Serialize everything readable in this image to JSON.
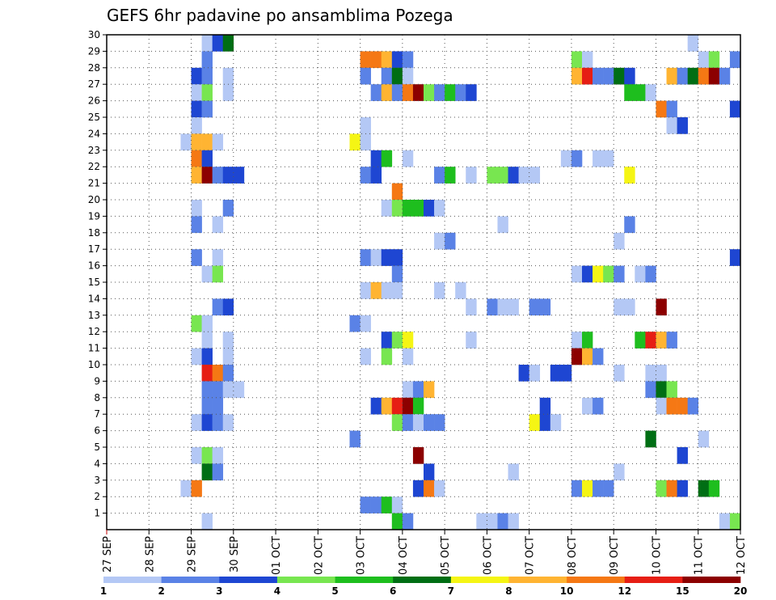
{
  "chart_data": {
    "type": "heatmap",
    "title": "GEFS 6hr padavine po ansamblima Pozega",
    "x_ticks": [
      "27 SEP",
      "28 SEP",
      "29 SEP",
      "30 SEP",
      "01 OCT",
      "02 OCT",
      "03 OCT",
      "04 OCT",
      "05 OCT",
      "06 OCT",
      "07 OCT",
      "08 OCT",
      "09 OCT",
      "10 OCT",
      "11 OCT",
      "12 OCT"
    ],
    "x_range": [
      "27 SEP 00Z",
      "12 OCT 00Z"
    ],
    "x_step_hours": 6,
    "y_ticks": [
      "1",
      "2",
      "3",
      "4",
      "5",
      "6",
      "7",
      "8",
      "9",
      "10",
      "11",
      "12",
      "13",
      "14",
      "15",
      "16",
      "17",
      "18",
      "19",
      "20",
      "21",
      "22",
      "23",
      "24",
      "25",
      "26",
      "27",
      "28",
      "29",
      "30"
    ],
    "y_range": [
      0,
      30
    ],
    "grid": true,
    "legend_position": "bottom",
    "legend": {
      "labels": [
        "1",
        "2",
        "3",
        "4",
        "5",
        "6",
        "7",
        "8",
        "10",
        "12",
        "15",
        "20"
      ],
      "colors": [
        "#b4c8f5",
        "#5a82e6",
        "#1e46d2",
        "#78e650",
        "#1ebe1e",
        "#006e14",
        "#f5f514",
        "#ffb432",
        "#f57814",
        "#e61e14",
        "#8c0000"
      ]
    },
    "cells_note": "each cell: [day_offset_from_27SEP, member, color_class 0-10]",
    "cells": [
      [
        2.25,
        30,
        0
      ],
      [
        2.5,
        30,
        2
      ],
      [
        2.75,
        30,
        5
      ],
      [
        13.75,
        30,
        0
      ],
      [
        2.25,
        29,
        1
      ],
      [
        6.0,
        29,
        8
      ],
      [
        6.25,
        29,
        8
      ],
      [
        6.5,
        29,
        7
      ],
      [
        6.75,
        29,
        2
      ],
      [
        7.0,
        29,
        1
      ],
      [
        11.0,
        29,
        3
      ],
      [
        11.25,
        29,
        0
      ],
      [
        14.0,
        29,
        0
      ],
      [
        14.25,
        29,
        3
      ],
      [
        14.75,
        29,
        1
      ],
      [
        2.0,
        28,
        2
      ],
      [
        2.25,
        28,
        1
      ],
      [
        2.75,
        28,
        0
      ],
      [
        6.0,
        28,
        1
      ],
      [
        6.5,
        28,
        1
      ],
      [
        6.75,
        28,
        5
      ],
      [
        7.0,
        28,
        0
      ],
      [
        11.0,
        28,
        7
      ],
      [
        11.25,
        28,
        9
      ],
      [
        11.5,
        28,
        1
      ],
      [
        11.75,
        28,
        1
      ],
      [
        12.0,
        28,
        5
      ],
      [
        12.25,
        28,
        2
      ],
      [
        13.25,
        28,
        7
      ],
      [
        13.5,
        28,
        1
      ],
      [
        13.75,
        28,
        5
      ],
      [
        14.0,
        28,
        8
      ],
      [
        14.25,
        28,
        10
      ],
      [
        14.5,
        28,
        1
      ],
      [
        2.0,
        27,
        0
      ],
      [
        2.25,
        27,
        3
      ],
      [
        2.75,
        27,
        0
      ],
      [
        6.25,
        27,
        1
      ],
      [
        6.5,
        27,
        7
      ],
      [
        6.75,
        27,
        1
      ],
      [
        7.0,
        27,
        8
      ],
      [
        7.25,
        27,
        10
      ],
      [
        7.5,
        27,
        3
      ],
      [
        7.75,
        27,
        1
      ],
      [
        8.0,
        27,
        4
      ],
      [
        8.25,
        27,
        1
      ],
      [
        8.5,
        27,
        2
      ],
      [
        12.25,
        27,
        4
      ],
      [
        12.5,
        27,
        4
      ],
      [
        12.75,
        27,
        0
      ],
      [
        2.0,
        26,
        2
      ],
      [
        2.25,
        26,
        1
      ],
      [
        13.0,
        26,
        8
      ],
      [
        13.25,
        26,
        1
      ],
      [
        14.75,
        26,
        2
      ],
      [
        2.0,
        25,
        0
      ],
      [
        6.0,
        25,
        0
      ],
      [
        13.25,
        25,
        0
      ],
      [
        13.5,
        25,
        2
      ],
      [
        1.75,
        24,
        0
      ],
      [
        2.0,
        24,
        7
      ],
      [
        2.25,
        24,
        7
      ],
      [
        2.5,
        24,
        0
      ],
      [
        5.75,
        24,
        6
      ],
      [
        6.0,
        24,
        0
      ],
      [
        2.0,
        23,
        8
      ],
      [
        2.25,
        23,
        2
      ],
      [
        6.25,
        23,
        2
      ],
      [
        6.5,
        23,
        4
      ],
      [
        7.0,
        23,
        0
      ],
      [
        10.75,
        23,
        0
      ],
      [
        11.0,
        23,
        1
      ],
      [
        11.5,
        23,
        0
      ],
      [
        11.75,
        23,
        0
      ],
      [
        2.0,
        22,
        7
      ],
      [
        2.25,
        22,
        10
      ],
      [
        2.5,
        22,
        1
      ],
      [
        2.75,
        22,
        2
      ],
      [
        3.0,
        22,
        2
      ],
      [
        6.0,
        22,
        1
      ],
      [
        6.25,
        22,
        2
      ],
      [
        7.75,
        22,
        1
      ],
      [
        8.0,
        22,
        4
      ],
      [
        8.5,
        22,
        0
      ],
      [
        9.0,
        22,
        3
      ],
      [
        9.25,
        22,
        3
      ],
      [
        9.5,
        22,
        2
      ],
      [
        9.75,
        22,
        0
      ],
      [
        10.0,
        22,
        0
      ],
      [
        12.25,
        22,
        6
      ],
      [
        6.75,
        21,
        8
      ],
      [
        2.0,
        20,
        0
      ],
      [
        2.75,
        20,
        1
      ],
      [
        6.5,
        20,
        0
      ],
      [
        6.75,
        20,
        3
      ],
      [
        7.0,
        20,
        4
      ],
      [
        7.25,
        20,
        4
      ],
      [
        7.5,
        20,
        2
      ],
      [
        7.75,
        20,
        0
      ],
      [
        2.0,
        19,
        1
      ],
      [
        2.5,
        19,
        0
      ],
      [
        9.25,
        19,
        0
      ],
      [
        12.25,
        19,
        1
      ],
      [
        7.75,
        18,
        0
      ],
      [
        8.0,
        18,
        1
      ],
      [
        12.0,
        18,
        0
      ],
      [
        2.0,
        17,
        1
      ],
      [
        2.5,
        17,
        0
      ],
      [
        6.0,
        17,
        1
      ],
      [
        6.25,
        17,
        0
      ],
      [
        6.5,
        17,
        2
      ],
      [
        6.75,
        17,
        2
      ],
      [
        14.75,
        17,
        2
      ],
      [
        2.25,
        16,
        0
      ],
      [
        2.5,
        16,
        3
      ],
      [
        6.75,
        16,
        1
      ],
      [
        11.0,
        16,
        0
      ],
      [
        11.25,
        16,
        2
      ],
      [
        11.5,
        16,
        6
      ],
      [
        11.75,
        16,
        3
      ],
      [
        12.0,
        16,
        1
      ],
      [
        12.5,
        16,
        0
      ],
      [
        12.75,
        16,
        1
      ],
      [
        6.0,
        15,
        0
      ],
      [
        6.25,
        15,
        7
      ],
      [
        6.5,
        15,
        0
      ],
      [
        6.75,
        15,
        0
      ],
      [
        7.75,
        15,
        0
      ],
      [
        8.25,
        15,
        0
      ],
      [
        2.5,
        14,
        1
      ],
      [
        2.75,
        14,
        2
      ],
      [
        8.5,
        14,
        0
      ],
      [
        9.0,
        14,
        1
      ],
      [
        9.25,
        14,
        0
      ],
      [
        9.5,
        14,
        0
      ],
      [
        10.0,
        14,
        1
      ],
      [
        10.25,
        14,
        1
      ],
      [
        12.0,
        14,
        0
      ],
      [
        12.25,
        14,
        0
      ],
      [
        13.0,
        14,
        10
      ],
      [
        2.0,
        13,
        3
      ],
      [
        2.25,
        13,
        0
      ],
      [
        5.75,
        13,
        1
      ],
      [
        6.0,
        13,
        0
      ],
      [
        2.25,
        12,
        0
      ],
      [
        2.75,
        12,
        0
      ],
      [
        6.5,
        12,
        2
      ],
      [
        6.75,
        12,
        3
      ],
      [
        7.0,
        12,
        6
      ],
      [
        8.5,
        12,
        0
      ],
      [
        11.0,
        12,
        0
      ],
      [
        11.25,
        12,
        4
      ],
      [
        12.5,
        12,
        4
      ],
      [
        12.75,
        12,
        9
      ],
      [
        13.0,
        12,
        7
      ],
      [
        13.25,
        12,
        1
      ],
      [
        2.0,
        11,
        0
      ],
      [
        2.25,
        11,
        2
      ],
      [
        2.75,
        11,
        0
      ],
      [
        6.0,
        11,
        0
      ],
      [
        6.5,
        11,
        3
      ],
      [
        7.0,
        11,
        0
      ],
      [
        11.0,
        11,
        10
      ],
      [
        11.25,
        11,
        7
      ],
      [
        11.5,
        11,
        1
      ],
      [
        2.25,
        10,
        9
      ],
      [
        2.5,
        10,
        8
      ],
      [
        2.75,
        10,
        1
      ],
      [
        9.75,
        10,
        2
      ],
      [
        10.0,
        10,
        0
      ],
      [
        10.5,
        10,
        2
      ],
      [
        10.75,
        10,
        2
      ],
      [
        12.0,
        10,
        0
      ],
      [
        12.75,
        10,
        0
      ],
      [
        13.0,
        10,
        0
      ],
      [
        2.25,
        9,
        1
      ],
      [
        2.5,
        9,
        1
      ],
      [
        2.75,
        9,
        0
      ],
      [
        3.0,
        9,
        0
      ],
      [
        7.0,
        9,
        0
      ],
      [
        7.25,
        9,
        1
      ],
      [
        7.5,
        9,
        7
      ],
      [
        12.75,
        9,
        1
      ],
      [
        13.0,
        9,
        5
      ],
      [
        13.25,
        9,
        3
      ],
      [
        2.25,
        8,
        1
      ],
      [
        2.5,
        8,
        1
      ],
      [
        6.25,
        8,
        2
      ],
      [
        6.5,
        8,
        7
      ],
      [
        6.75,
        8,
        9
      ],
      [
        7.0,
        8,
        10
      ],
      [
        7.25,
        8,
        4
      ],
      [
        10.25,
        8,
        2
      ],
      [
        11.25,
        8,
        0
      ],
      [
        11.5,
        8,
        1
      ],
      [
        13.0,
        8,
        0
      ],
      [
        13.25,
        8,
        8
      ],
      [
        13.5,
        8,
        8
      ],
      [
        13.75,
        8,
        1
      ],
      [
        2.0,
        7,
        0
      ],
      [
        2.25,
        7,
        2
      ],
      [
        2.5,
        7,
        1
      ],
      [
        2.75,
        7,
        0
      ],
      [
        6.75,
        7,
        3
      ],
      [
        7.0,
        7,
        1
      ],
      [
        7.25,
        7,
        0
      ],
      [
        7.5,
        7,
        1
      ],
      [
        7.75,
        7,
        1
      ],
      [
        10.0,
        7,
        6
      ],
      [
        10.25,
        7,
        2
      ],
      [
        10.5,
        7,
        0
      ],
      [
        5.75,
        6,
        1
      ],
      [
        12.75,
        6,
        5
      ],
      [
        14.0,
        6,
        0
      ],
      [
        2.0,
        5,
        0
      ],
      [
        2.25,
        5,
        3
      ],
      [
        2.5,
        5,
        0
      ],
      [
        7.25,
        5,
        10
      ],
      [
        13.5,
        5,
        2
      ],
      [
        2.25,
        4,
        5
      ],
      [
        2.5,
        4,
        1
      ],
      [
        7.5,
        4,
        2
      ],
      [
        9.5,
        4,
        0
      ],
      [
        12.0,
        4,
        0
      ],
      [
        1.75,
        3,
        0
      ],
      [
        2.0,
        3,
        8
      ],
      [
        7.25,
        3,
        2
      ],
      [
        7.5,
        3,
        8
      ],
      [
        7.75,
        3,
        0
      ],
      [
        11.0,
        3,
        1
      ],
      [
        11.25,
        3,
        6
      ],
      [
        11.5,
        3,
        1
      ],
      [
        11.75,
        3,
        1
      ],
      [
        13.0,
        3,
        3
      ],
      [
        13.25,
        3,
        8
      ],
      [
        13.5,
        3,
        2
      ],
      [
        14.0,
        3,
        5
      ],
      [
        14.25,
        3,
        4
      ],
      [
        6.0,
        2,
        1
      ],
      [
        6.25,
        2,
        1
      ],
      [
        6.5,
        2,
        4
      ],
      [
        6.75,
        2,
        0
      ],
      [
        2.25,
        1,
        0
      ],
      [
        6.75,
        1,
        4
      ],
      [
        7.0,
        1,
        1
      ],
      [
        8.75,
        1,
        0
      ],
      [
        9.0,
        1,
        0
      ],
      [
        9.25,
        1,
        1
      ],
      [
        9.5,
        1,
        0
      ],
      [
        14.5,
        1,
        0
      ],
      [
        14.75,
        1,
        3
      ]
    ]
  }
}
